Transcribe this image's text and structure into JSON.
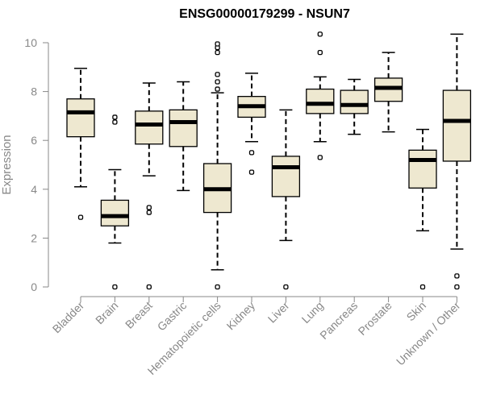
{
  "chart_data": {
    "type": "boxplot",
    "title": "ENSG00000179299 - NSUN7",
    "xlabel": "",
    "ylabel": "Expression",
    "ylim": [
      0,
      10
    ],
    "yticks": [
      0,
      2,
      4,
      6,
      8,
      10
    ],
    "box_color": "#EEE8D0",
    "median_color": "#000000",
    "categories": [
      "Bladder",
      "Brain",
      "Breast",
      "Gastric",
      "Hematopoietic cells",
      "Kidney",
      "Liver",
      "Lung",
      "Pancreas",
      "Prostate",
      "Skin",
      "Unknown / Other"
    ],
    "boxes": [
      {
        "name": "Bladder",
        "whisker_low": 4.1,
        "q1": 6.15,
        "median": 7.15,
        "q3": 7.7,
        "whisker_high": 8.95,
        "outliers": [
          2.85
        ]
      },
      {
        "name": "Brain",
        "whisker_low": 1.8,
        "q1": 2.5,
        "median": 2.9,
        "q3": 3.55,
        "whisker_high": 4.8,
        "outliers": [
          0,
          6.75,
          6.95
        ]
      },
      {
        "name": "Breast",
        "whisker_low": 4.55,
        "q1": 5.85,
        "median": 6.65,
        "q3": 7.2,
        "whisker_high": 8.35,
        "outliers": [
          0,
          3.05,
          3.25
        ]
      },
      {
        "name": "Gastric",
        "whisker_low": 3.95,
        "q1": 5.75,
        "median": 6.75,
        "q3": 7.25,
        "whisker_high": 8.4,
        "outliers": []
      },
      {
        "name": "Hematopoietic cells",
        "whisker_low": 0.7,
        "q1": 3.05,
        "median": 4.0,
        "q3": 5.05,
        "whisker_high": 7.95,
        "outliers": [
          0,
          8.1,
          8.4,
          8.7,
          9.6,
          9.8,
          9.95
        ]
      },
      {
        "name": "Kidney",
        "whisker_low": 5.95,
        "q1": 6.95,
        "median": 7.4,
        "q3": 7.8,
        "whisker_high": 8.75,
        "outliers": [
          4.7,
          5.5
        ]
      },
      {
        "name": "Liver",
        "whisker_low": 1.9,
        "q1": 3.7,
        "median": 4.9,
        "q3": 5.35,
        "whisker_high": 7.25,
        "outliers": [
          0
        ]
      },
      {
        "name": "Lung",
        "whisker_low": 5.95,
        "q1": 7.1,
        "median": 7.5,
        "q3": 8.1,
        "whisker_high": 8.6,
        "outliers": [
          5.3,
          9.6,
          10.35
        ]
      },
      {
        "name": "Pancreas",
        "whisker_low": 6.25,
        "q1": 7.1,
        "median": 7.45,
        "q3": 8.05,
        "whisker_high": 8.5,
        "outliers": []
      },
      {
        "name": "Prostate",
        "whisker_low": 6.35,
        "q1": 7.6,
        "median": 8.15,
        "q3": 8.55,
        "whisker_high": 9.6,
        "outliers": []
      },
      {
        "name": "Skin",
        "whisker_low": 2.3,
        "q1": 4.05,
        "median": 5.2,
        "q3": 5.6,
        "whisker_high": 6.45,
        "outliers": [
          0
        ]
      },
      {
        "name": "Unknown / Other",
        "whisker_low": 1.55,
        "q1": 5.15,
        "median": 6.8,
        "q3": 8.05,
        "whisker_high": 10.35,
        "outliers": [
          0,
          0.45
        ]
      }
    ]
  }
}
